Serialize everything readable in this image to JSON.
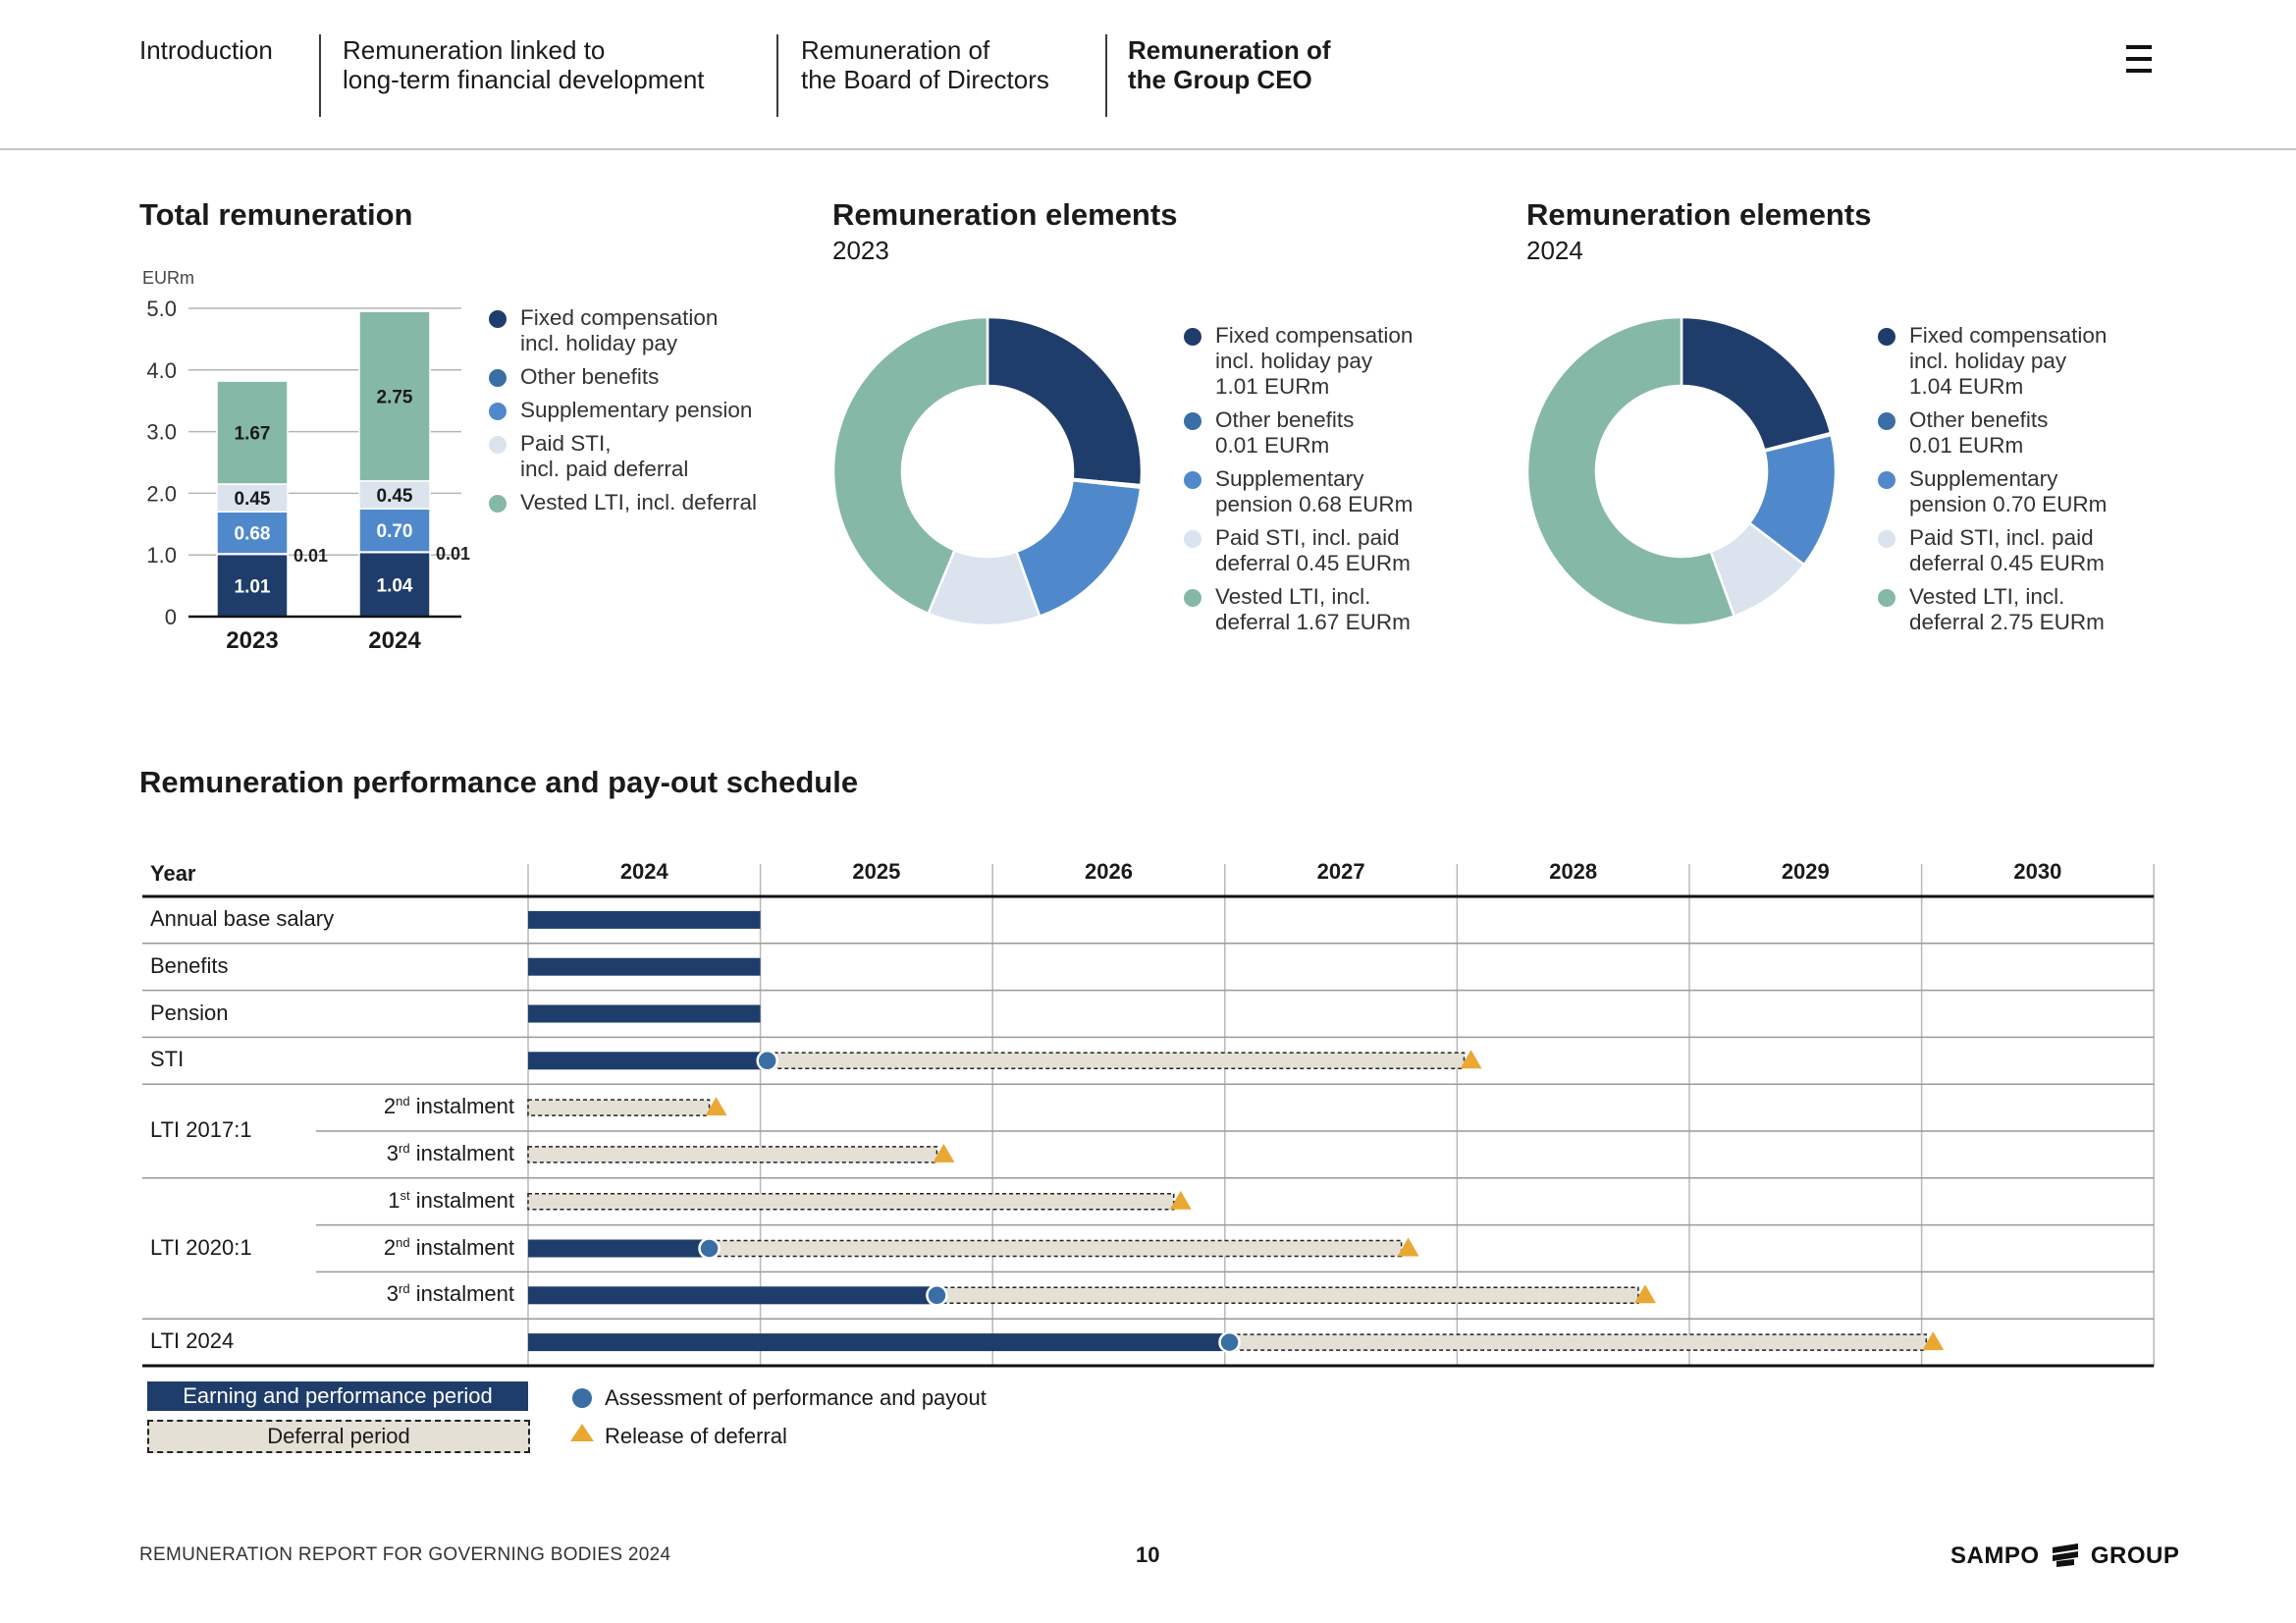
{
  "nav": {
    "items": [
      {
        "label": "Introduction",
        "active": false
      },
      {
        "label": "Remuneration linked to\nlong-term financial development",
        "active": false
      },
      {
        "label": "Remuneration of\nthe Board of Directors",
        "active": false
      },
      {
        "label": "Remuneration of\nthe Group CEO",
        "active": true
      }
    ],
    "menu_icon": "hamburger-menu-icon"
  },
  "total": {
    "title": "Total remuneration",
    "unit": "EURm",
    "legend": [
      {
        "label": "Fixed compensation\nincl. holiday pay",
        "color": "#1f3d6b"
      },
      {
        "label": "Other benefits",
        "color": "#3a6ea5"
      },
      {
        "label": "Supplementary pension",
        "color": "#5089cb"
      },
      {
        "label": "Paid STI,\nincl. paid deferral",
        "color": "#dbe3ee"
      },
      {
        "label": "Vested LTI, incl. deferral",
        "color": "#86b8a8"
      }
    ]
  },
  "donut2023": {
    "title": "Remuneration elements",
    "year": "2023",
    "legend": [
      {
        "label": "Fixed compensation\nincl. holiday pay\n1.01 EURm",
        "color": "#1f3d6b"
      },
      {
        "label": "Other benefits\n0.01 EURm",
        "color": "#3a6ea5"
      },
      {
        "label": "Supplementary\npension 0.68 EURm",
        "color": "#5089cb"
      },
      {
        "label": "Paid STI, incl. paid\ndeferral 0.45 EURm",
        "color": "#dbe3ee"
      },
      {
        "label": "Vested LTI, incl.\ndeferral 1.67 EURm",
        "color": "#86b8a8"
      }
    ]
  },
  "donut2024": {
    "title": "Remuneration elements",
    "year": "2024",
    "legend": [
      {
        "label": "Fixed compensation\nincl. holiday pay\n1.04 EURm",
        "color": "#1f3d6b"
      },
      {
        "label": "Other benefits\n0.01 EURm",
        "color": "#3a6ea5"
      },
      {
        "label": "Supplementary\npension 0.70 EURm",
        "color": "#5089cb"
      },
      {
        "label": "Paid STI, incl. paid\ndeferral 0.45 EURm",
        "color": "#dbe3ee"
      },
      {
        "label": "Vested LTI, incl.\ndeferral 2.75 EURm",
        "color": "#86b8a8"
      }
    ]
  },
  "chart_data": [
    {
      "type": "bar",
      "stacked": true,
      "title": "Total remuneration",
      "ylabel": "EURm",
      "categories": [
        "2023",
        "2024"
      ],
      "ylim": [
        0,
        5.0
      ],
      "yticks": [
        "0",
        "1.0",
        "2.0",
        "3.0",
        "4.0",
        "5.0"
      ],
      "grid": true,
      "series": [
        {
          "name": "Fixed compensation incl. holiday pay",
          "values": [
            1.01,
            1.04
          ],
          "labels": [
            "1.01",
            "1.04"
          ],
          "color": "#1f3d6b"
        },
        {
          "name": "Other benefits",
          "values": [
            0.01,
            0.01
          ],
          "labels": [
            "0.01",
            "0.01"
          ],
          "color": "#3a6ea5"
        },
        {
          "name": "Supplementary pension",
          "values": [
            0.68,
            0.7
          ],
          "labels": [
            "0.68",
            "0.70"
          ],
          "color": "#5089cb"
        },
        {
          "name": "Paid STI, incl. paid deferral",
          "values": [
            0.45,
            0.45
          ],
          "labels": [
            "0.45",
            "0.45"
          ],
          "color": "#dbe3ee"
        },
        {
          "name": "Vested LTI, incl. deferral",
          "values": [
            1.67,
            2.75
          ],
          "labels": [
            "1.67",
            "2.75"
          ],
          "color": "#86b8a8"
        }
      ]
    },
    {
      "type": "pie",
      "donut": true,
      "title": "Remuneration elements",
      "subtitle": "2023",
      "categories": [
        "Fixed compensation incl. holiday pay",
        "Other benefits",
        "Supplementary pension",
        "Paid STI, incl. paid deferral",
        "Vested LTI, incl. deferral"
      ],
      "values": [
        1.01,
        0.01,
        0.68,
        0.45,
        1.67
      ],
      "colors": [
        "#1f3d6b",
        "#3a6ea5",
        "#5089cb",
        "#dbe3ee",
        "#86b8a8"
      ]
    },
    {
      "type": "pie",
      "donut": true,
      "title": "Remuneration elements",
      "subtitle": "2024",
      "categories": [
        "Fixed compensation incl. holiday pay",
        "Other benefits",
        "Supplementary pension",
        "Paid STI, incl. paid deferral",
        "Vested LTI, incl. deferral"
      ],
      "values": [
        1.04,
        0.01,
        0.7,
        0.45,
        2.75
      ],
      "colors": [
        "#1f3d6b",
        "#3a6ea5",
        "#5089cb",
        "#dbe3ee",
        "#86b8a8"
      ]
    },
    {
      "type": "table",
      "title": "Remuneration performance and pay-out schedule",
      "year_header": "Year",
      "years": [
        "2024",
        "2025",
        "2026",
        "2027",
        "2028",
        "2029",
        "2030"
      ],
      "year_start": 2024,
      "rows": [
        {
          "group": "",
          "label": "Annual base salary",
          "earn": [
            0,
            1
          ],
          "defer": null,
          "assess": null,
          "release": null
        },
        {
          "group": "",
          "label": "Benefits",
          "earn": [
            0,
            1
          ],
          "defer": null,
          "assess": null,
          "release": null
        },
        {
          "group": "",
          "label": "Pension",
          "earn": [
            0,
            1
          ],
          "defer": null,
          "assess": null,
          "release": null
        },
        {
          "group": "",
          "label": "STI",
          "earn": [
            0,
            1.03
          ],
          "defer": [
            1.03,
            4.03
          ],
          "assess": 1.03,
          "release": 4.03
        },
        {
          "group": "LTI 2017:1",
          "num": "2",
          "sup": "nd",
          "label": "instalment",
          "earn": null,
          "defer": [
            0,
            0.78
          ],
          "assess": null,
          "release": 0.78
        },
        {
          "group": "LTI 2017:1",
          "num": "3",
          "sup": "rd",
          "label": "instalment",
          "earn": null,
          "defer": [
            0,
            1.76
          ],
          "assess": null,
          "release": 1.76
        },
        {
          "group": "LTI 2020:1",
          "num": "1",
          "sup": "st",
          "label": "instalment",
          "earn": null,
          "defer": [
            0,
            2.78
          ],
          "assess": null,
          "release": 2.78
        },
        {
          "group": "LTI 2020:1",
          "num": "2",
          "sup": "nd",
          "label": "instalment",
          "earn": [
            0,
            0.78
          ],
          "defer": [
            0.78,
            3.76
          ],
          "assess": 0.78,
          "release": 3.76
        },
        {
          "group": "LTI 2020:1",
          "num": "3",
          "sup": "rd",
          "label": "instalment",
          "earn": [
            0,
            1.76
          ],
          "defer": [
            1.76,
            4.78
          ],
          "assess": 1.76,
          "release": 4.78
        },
        {
          "group": "",
          "label": "LTI 2024",
          "earn": [
            0,
            3.02
          ],
          "defer": [
            3.02,
            6.02
          ],
          "assess": 3.02,
          "release": 6.02
        }
      ],
      "groups": [
        "LTI 2017:1",
        "LTI 2020:1"
      ],
      "legend": {
        "earning": "Earning and performance period",
        "deferral": "Deferral period",
        "assessment": "Assessment of performance and payout",
        "release": "Release of deferral"
      }
    }
  ],
  "footer": {
    "report": "REMUNERATION REPORT FOR GOVERNING BODIES 2024",
    "page": "10",
    "brand_left": "SAMPO",
    "brand_right": "GROUP",
    "brand_icon": "sampo-logo-icon"
  }
}
